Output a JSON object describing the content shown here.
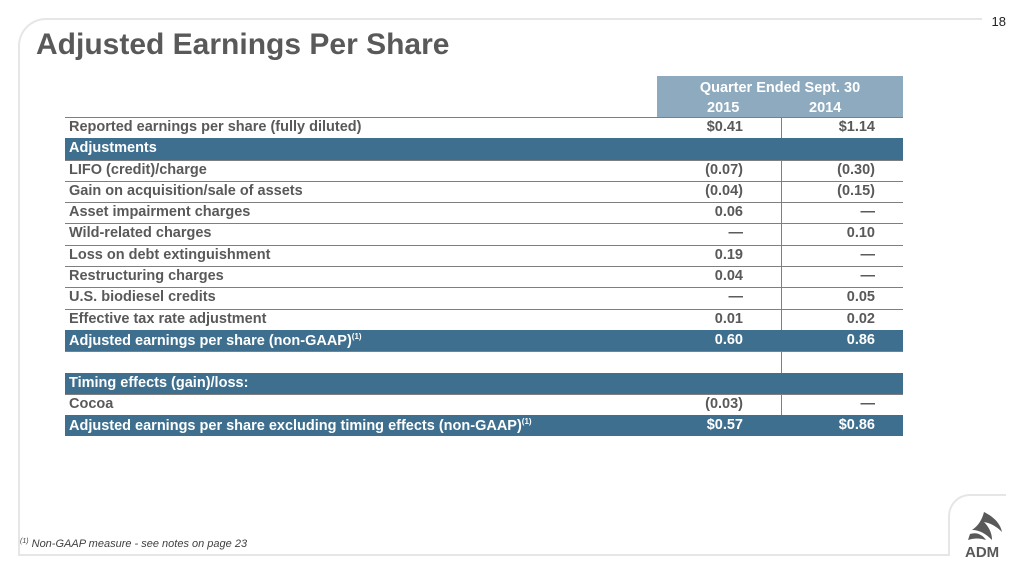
{
  "page_number": "18",
  "title": "Adjusted Earnings Per Share",
  "header": {
    "period": "Quarter Ended Sept. 30",
    "years": [
      "2015",
      "2014"
    ]
  },
  "rows": [
    {
      "label": "Reported earnings per share (fully diluted)",
      "v2015": "$0.41",
      "v2014": "$1.14",
      "style": "normal"
    },
    {
      "label": "Adjustments",
      "v2015": "",
      "v2014": "",
      "style": "band"
    },
    {
      "label": "LIFO (credit)/charge",
      "v2015": "(0.07)",
      "v2014": "(0.30)",
      "style": "normal"
    },
    {
      "label": "Gain on acquisition/sale of assets",
      "v2015": "(0.04)",
      "v2014": "(0.15)",
      "style": "normal"
    },
    {
      "label": "Asset impairment charges",
      "v2015": "0.06",
      "v2014": "—",
      "style": "normal"
    },
    {
      "label": "Wild-related charges",
      "v2015": "—",
      "v2014": "0.10",
      "style": "normal"
    },
    {
      "label": "Loss on debt extinguishment",
      "v2015": "0.19",
      "v2014": "—",
      "style": "normal"
    },
    {
      "label": "Restructuring charges",
      "v2015": "0.04",
      "v2014": "—",
      "style": "normal"
    },
    {
      "label": "U.S. biodiesel credits",
      "v2015": "—",
      "v2014": "0.05",
      "style": "normal"
    },
    {
      "label": "Effective tax rate adjustment",
      "v2015": "0.01",
      "v2014": "0.02",
      "style": "normal"
    },
    {
      "label": "Adjusted earnings per share (non-GAAP)",
      "sup": "(1)",
      "v2015": "0.60",
      "v2014": "0.86",
      "style": "band"
    },
    {
      "label": "",
      "v2015": "",
      "v2014": "",
      "style": "blank"
    },
    {
      "label": "Timing effects (gain)/loss:",
      "v2015": "",
      "v2014": "",
      "style": "band"
    },
    {
      "label": "Cocoa",
      "v2015": "(0.03)",
      "v2014": "—",
      "style": "normal"
    },
    {
      "label": "Adjusted earnings per share excluding timing effects (non-GAAP)",
      "sup": "(1)",
      "v2015": "$0.57",
      "v2014": "$0.86",
      "style": "band"
    }
  ],
  "footnote": {
    "marker": "(1)",
    "text": "Non-GAAP measure - see notes on page 23"
  },
  "logo_text": "ADM"
}
